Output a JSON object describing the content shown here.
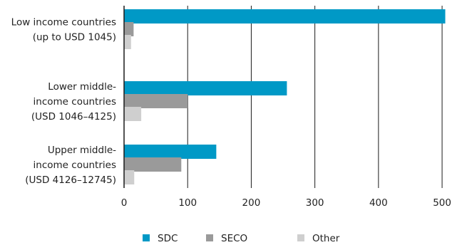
{
  "chart_data": {
    "type": "bar",
    "orientation": "horizontal",
    "categories": [
      [
        "Low income countries",
        "(up to USD 1045)"
      ],
      [
        "Lower middle-",
        "income countries",
        "(USD 1046–4125)"
      ],
      [
        "Upper middle-",
        "income countries",
        "(USD 4126–12745)"
      ]
    ],
    "series": [
      {
        "name": "SDC",
        "color": "#0099c6",
        "values": [
          505,
          256,
          145
        ]
      },
      {
        "name": "SECO",
        "color": "#9a9a9a",
        "values": [
          15,
          100,
          90
        ]
      },
      {
        "name": "Other",
        "color": "#cfcfcf",
        "values": [
          11,
          27,
          16
        ]
      }
    ],
    "xlim": [
      0,
      510
    ],
    "xticks": [
      0,
      100,
      200,
      300,
      400,
      500
    ],
    "grid": "vertical",
    "legend": "bottom"
  }
}
